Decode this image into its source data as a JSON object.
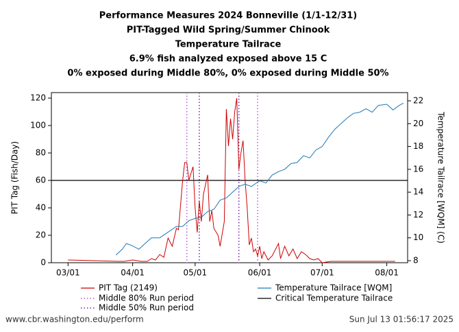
{
  "chart_data": {
    "type": "line",
    "title": [
      "Performance Measures 2024 Bonneville (1/1-12/31)",
      "PIT-Tagged Wild Spring/Summer Chinook",
      "Temperature Tailrace",
      "6.9% fish analyzed exposed above 15 C",
      "0% exposed during Middle 80%, 0% exposed during Middle 50%"
    ],
    "y_label": "PIT Tag (Fish/Day)",
    "y2_label": "Temperature Tailrace [WQM] (C)",
    "xlim": [
      "02/22",
      "08/11"
    ],
    "xticks": [
      "03/01",
      "04/01",
      "05/01",
      "06/01",
      "07/01",
      "08/01"
    ],
    "ylim": [
      0,
      124
    ],
    "yticks": [
      0,
      20,
      40,
      60,
      80,
      100,
      120
    ],
    "y2lim": [
      7.82,
      22.72
    ],
    "y2ticks": [
      8,
      10,
      12,
      14,
      16,
      18,
      20,
      22
    ],
    "series": [
      {
        "name": "PIT Tag (2149)",
        "color": "#cc0000",
        "x": [
          "03/01",
          "03/25",
          "03/28",
          "04/01",
          "04/05",
          "04/08",
          "04/10",
          "04/12",
          "04/14",
          "04/16",
          "04/18",
          "04/20",
          "04/22",
          "04/23",
          "04/25",
          "04/26",
          "04/27",
          "04/28",
          "04/29",
          "04/30",
          "05/01",
          "05/02",
          "05/03",
          "05/04",
          "05/05",
          "05/07",
          "05/08",
          "05/09",
          "05/10",
          "05/12",
          "05/13",
          "05/15",
          "05/16",
          "05/17",
          "05/18",
          "05/19",
          "05/20",
          "05/21",
          "05/22",
          "05/23",
          "05/24",
          "05/25",
          "05/26",
          "05/27",
          "05/28",
          "05/29",
          "05/30",
          "05/31",
          "06/01",
          "06/02",
          "06/03",
          "06/05",
          "06/07",
          "06/10",
          "06/11",
          "06/13",
          "06/15",
          "06/17",
          "06/19",
          "06/21",
          "06/23",
          "06/25",
          "06/27",
          "06/29",
          "07/01",
          "07/05",
          "07/10",
          "07/20",
          "07/28",
          "08/01",
          "08/05"
        ],
        "values": [
          2,
          1,
          1,
          2,
          1,
          1,
          3,
          2,
          6,
          4,
          18,
          12,
          25,
          24,
          60,
          73,
          73,
          60,
          65,
          70,
          40,
          22,
          45,
          30,
          50,
          64,
          30,
          38,
          25,
          20,
          12,
          30,
          112,
          85,
          105,
          90,
          110,
          120,
          68,
          80,
          89,
          60,
          40,
          13,
          18,
          8,
          10,
          5,
          12,
          3,
          8,
          2,
          5,
          14,
          3,
          12,
          5,
          10,
          3,
          8,
          6,
          3,
          2,
          3,
          0,
          1,
          1,
          1,
          1,
          1,
          1
        ]
      },
      {
        "name": "Temperature Tailrace [WQM]",
        "color": "#1f77b4",
        "axis": "y2",
        "x": [
          "03/24",
          "03/27",
          "03/29",
          "04/01",
          "04/04",
          "04/07",
          "04/10",
          "04/14",
          "04/18",
          "04/22",
          "04/25",
          "04/28",
          "05/01",
          "05/04",
          "05/07",
          "05/10",
          "05/13",
          "05/16",
          "05/19",
          "05/22",
          "05/25",
          "05/28",
          "06/01",
          "06/04",
          "06/07",
          "06/10",
          "06/13",
          "06/16",
          "06/19",
          "06/22",
          "06/25",
          "06/28",
          "07/01",
          "07/04",
          "07/07",
          "07/10",
          "07/13",
          "07/16",
          "07/19",
          "07/22",
          "07/25",
          "07/28",
          "08/01",
          "08/04",
          "08/07",
          "08/09"
        ],
        "values": [
          8.5,
          9.0,
          9.5,
          9.3,
          9.0,
          9.5,
          10.0,
          10.0,
          10.5,
          11.0,
          11.0,
          11.5,
          11.7,
          11.8,
          12.3,
          12.5,
          13.3,
          13.5,
          14.0,
          14.5,
          14.7,
          14.5,
          15.0,
          14.8,
          15.5,
          15.8,
          16.0,
          16.5,
          16.6,
          17.2,
          17.0,
          17.7,
          18.0,
          18.8,
          19.5,
          20.0,
          20.5,
          20.9,
          21.0,
          21.3,
          21.0,
          21.6,
          21.7,
          21.2,
          21.6,
          21.8
        ]
      }
    ],
    "run_periods": [
      {
        "name": "Middle 80% Run period",
        "color": "#b05ad8",
        "start": "04/27",
        "end": "05/31"
      },
      {
        "name": "Middle 50% Run period",
        "color": "#7a1fa8",
        "start": "05/03",
        "end": "05/22"
      }
    ],
    "critical": {
      "name": "Critical Temperature Tailrace",
      "color": "#000000",
      "value": 60
    },
    "source": "www.cbr.washington.edu/perform",
    "timestamp": "Sun Jul 13 01:56:17 2025"
  }
}
